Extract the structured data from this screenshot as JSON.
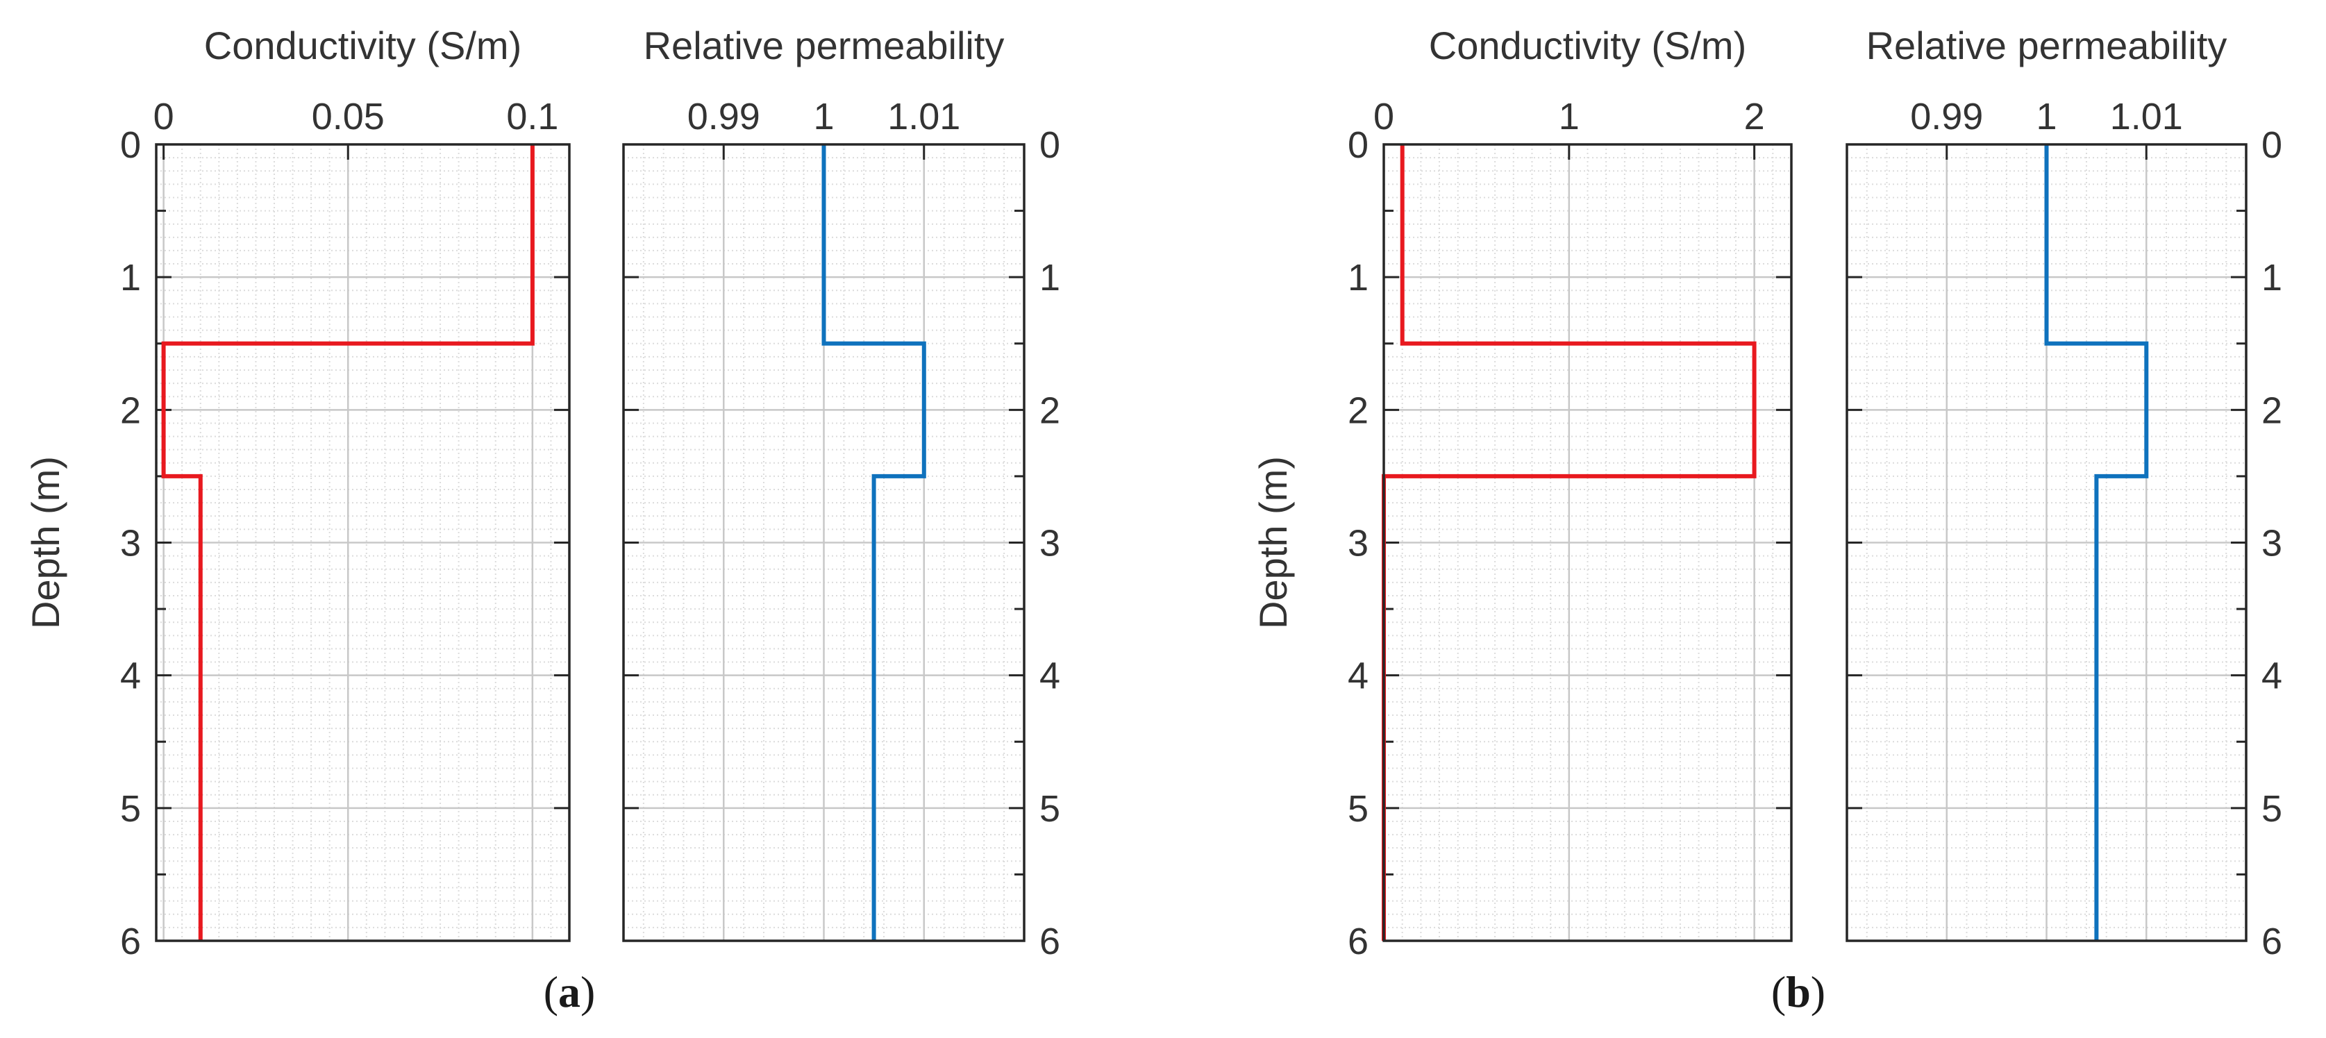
{
  "chart_data": [
    {
      "type": "line",
      "panel": "a",
      "title": "Conductivity (S/m)",
      "xlabel": "Conductivity (S/m)",
      "ylabel": "Depth (m)",
      "xlim": [
        -0.002,
        0.11
      ],
      "ylim": [
        0,
        6
      ],
      "x_ticks": [
        0,
        0.05,
        0.1
      ],
      "x_tick_labels": [
        "0",
        "0.05",
        "0.1"
      ],
      "y_ticks": [
        0,
        1,
        2,
        3,
        4,
        5,
        6
      ],
      "y_tick_labels": [
        "0",
        "1",
        "2",
        "3",
        "4",
        "5",
        "6"
      ],
      "y_axis_side": "left",
      "grid": true,
      "series": [
        {
          "name": "Conductivity",
          "color": "#e8191f",
          "points": [
            [
              0.1,
              0
            ],
            [
              0.1,
              1.5
            ],
            [
              0,
              1.5
            ],
            [
              0,
              2.5
            ],
            [
              0.01,
              2.5
            ],
            [
              0.01,
              6
            ]
          ]
        }
      ]
    },
    {
      "type": "line",
      "panel": "a",
      "title": "Relative permeability",
      "xlabel": "Relative permeability",
      "ylabel": "",
      "xlim": [
        0.98,
        1.02
      ],
      "ylim": [
        0,
        6
      ],
      "x_ticks": [
        0.99,
        1,
        1.01
      ],
      "x_tick_labels": [
        "0.99",
        "1",
        "1.01"
      ],
      "y_ticks": [
        0,
        1,
        2,
        3,
        4,
        5,
        6
      ],
      "y_tick_labels": [
        "0",
        "1",
        "2",
        "3",
        "4",
        "5",
        "6"
      ],
      "y_axis_side": "right",
      "grid": true,
      "series": [
        {
          "name": "Relative permeability",
          "color": "#0f72bd",
          "points": [
            [
              1,
              0
            ],
            [
              1,
              1.5
            ],
            [
              1.01,
              1.5
            ],
            [
              1.01,
              2.5
            ],
            [
              1.005,
              2.5
            ],
            [
              1.005,
              6
            ]
          ]
        }
      ]
    },
    {
      "type": "line",
      "panel": "b",
      "title": "Conductivity (S/m)",
      "xlabel": "Conductivity (S/m)",
      "ylabel": "Depth (m)",
      "xlim": [
        0,
        2.2
      ],
      "ylim": [
        0,
        6
      ],
      "x_ticks": [
        0,
        1,
        2
      ],
      "x_tick_labels": [
        "0",
        "1",
        "2"
      ],
      "y_ticks": [
        0,
        1,
        2,
        3,
        4,
        5,
        6
      ],
      "y_tick_labels": [
        "0",
        "1",
        "2",
        "3",
        "4",
        "5",
        "6"
      ],
      "y_axis_side": "left",
      "grid": true,
      "series": [
        {
          "name": "Conductivity",
          "color": "#e8191f",
          "points": [
            [
              0.1,
              0
            ],
            [
              0.1,
              1.5
            ],
            [
              2,
              1.5
            ],
            [
              2,
              2.5
            ],
            [
              0,
              2.5
            ],
            [
              0,
              6
            ]
          ]
        }
      ]
    },
    {
      "type": "line",
      "panel": "b",
      "title": "Relative permeability",
      "xlabel": "Relative permeability",
      "ylabel": "",
      "xlim": [
        0.98,
        1.02
      ],
      "ylim": [
        0,
        6
      ],
      "x_ticks": [
        0.99,
        1,
        1.01
      ],
      "x_tick_labels": [
        "0.99",
        "1",
        "1.01"
      ],
      "y_ticks": [
        0,
        1,
        2,
        3,
        4,
        5,
        6
      ],
      "y_tick_labels": [
        "0",
        "1",
        "2",
        "3",
        "4",
        "5",
        "6"
      ],
      "y_axis_side": "right",
      "grid": true,
      "series": [
        {
          "name": "Relative permeability",
          "color": "#0f72bd",
          "points": [
            [
              1,
              0
            ],
            [
              1,
              1.5
            ],
            [
              1.01,
              1.5
            ],
            [
              1.01,
              2.5
            ],
            [
              1.005,
              2.5
            ],
            [
              1.005,
              6
            ]
          ]
        }
      ]
    }
  ],
  "panel_labels": {
    "a": {
      "open": "(",
      "letter": "a",
      "close": ")"
    },
    "b": {
      "open": "(",
      "letter": "b",
      "close": ")"
    }
  }
}
